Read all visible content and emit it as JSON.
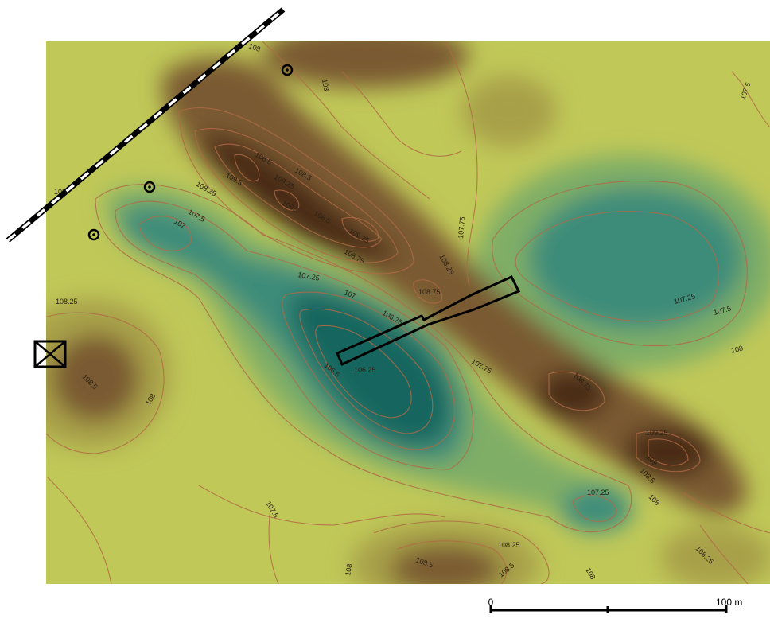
{
  "colors": {
    "high": "#4a2a15",
    "upper": "#7a5a30",
    "mid": "#a8a048",
    "low_mid": "#c0c858",
    "lowland": "#7fae66",
    "low": "#3c8c7a",
    "deep": "#17665e",
    "contour": "#b06a45"
  },
  "contour_labels": [
    "108",
    "108",
    "109.5",
    "109.25",
    "108.5",
    "109.5",
    "108.5",
    "108.25",
    "109.25",
    "108.75",
    "108",
    "107.5",
    "107",
    "107.25",
    "107",
    "106.75",
    "106.5",
    "106.25",
    "108.75",
    "108.25",
    "107.75",
    "107.75",
    "108.25",
    "108.5",
    "108",
    "108.75",
    "109.25",
    "109",
    "108.5",
    "108",
    "107.25",
    "107.5",
    "108",
    "107.5",
    "107.5",
    "108.25",
    "108.5",
    "108.5",
    "108",
    "108",
    "108.25",
    "107.25",
    "108.5"
  ],
  "scale_bar": {
    "start_label": "0",
    "end_label": "100 m"
  }
}
